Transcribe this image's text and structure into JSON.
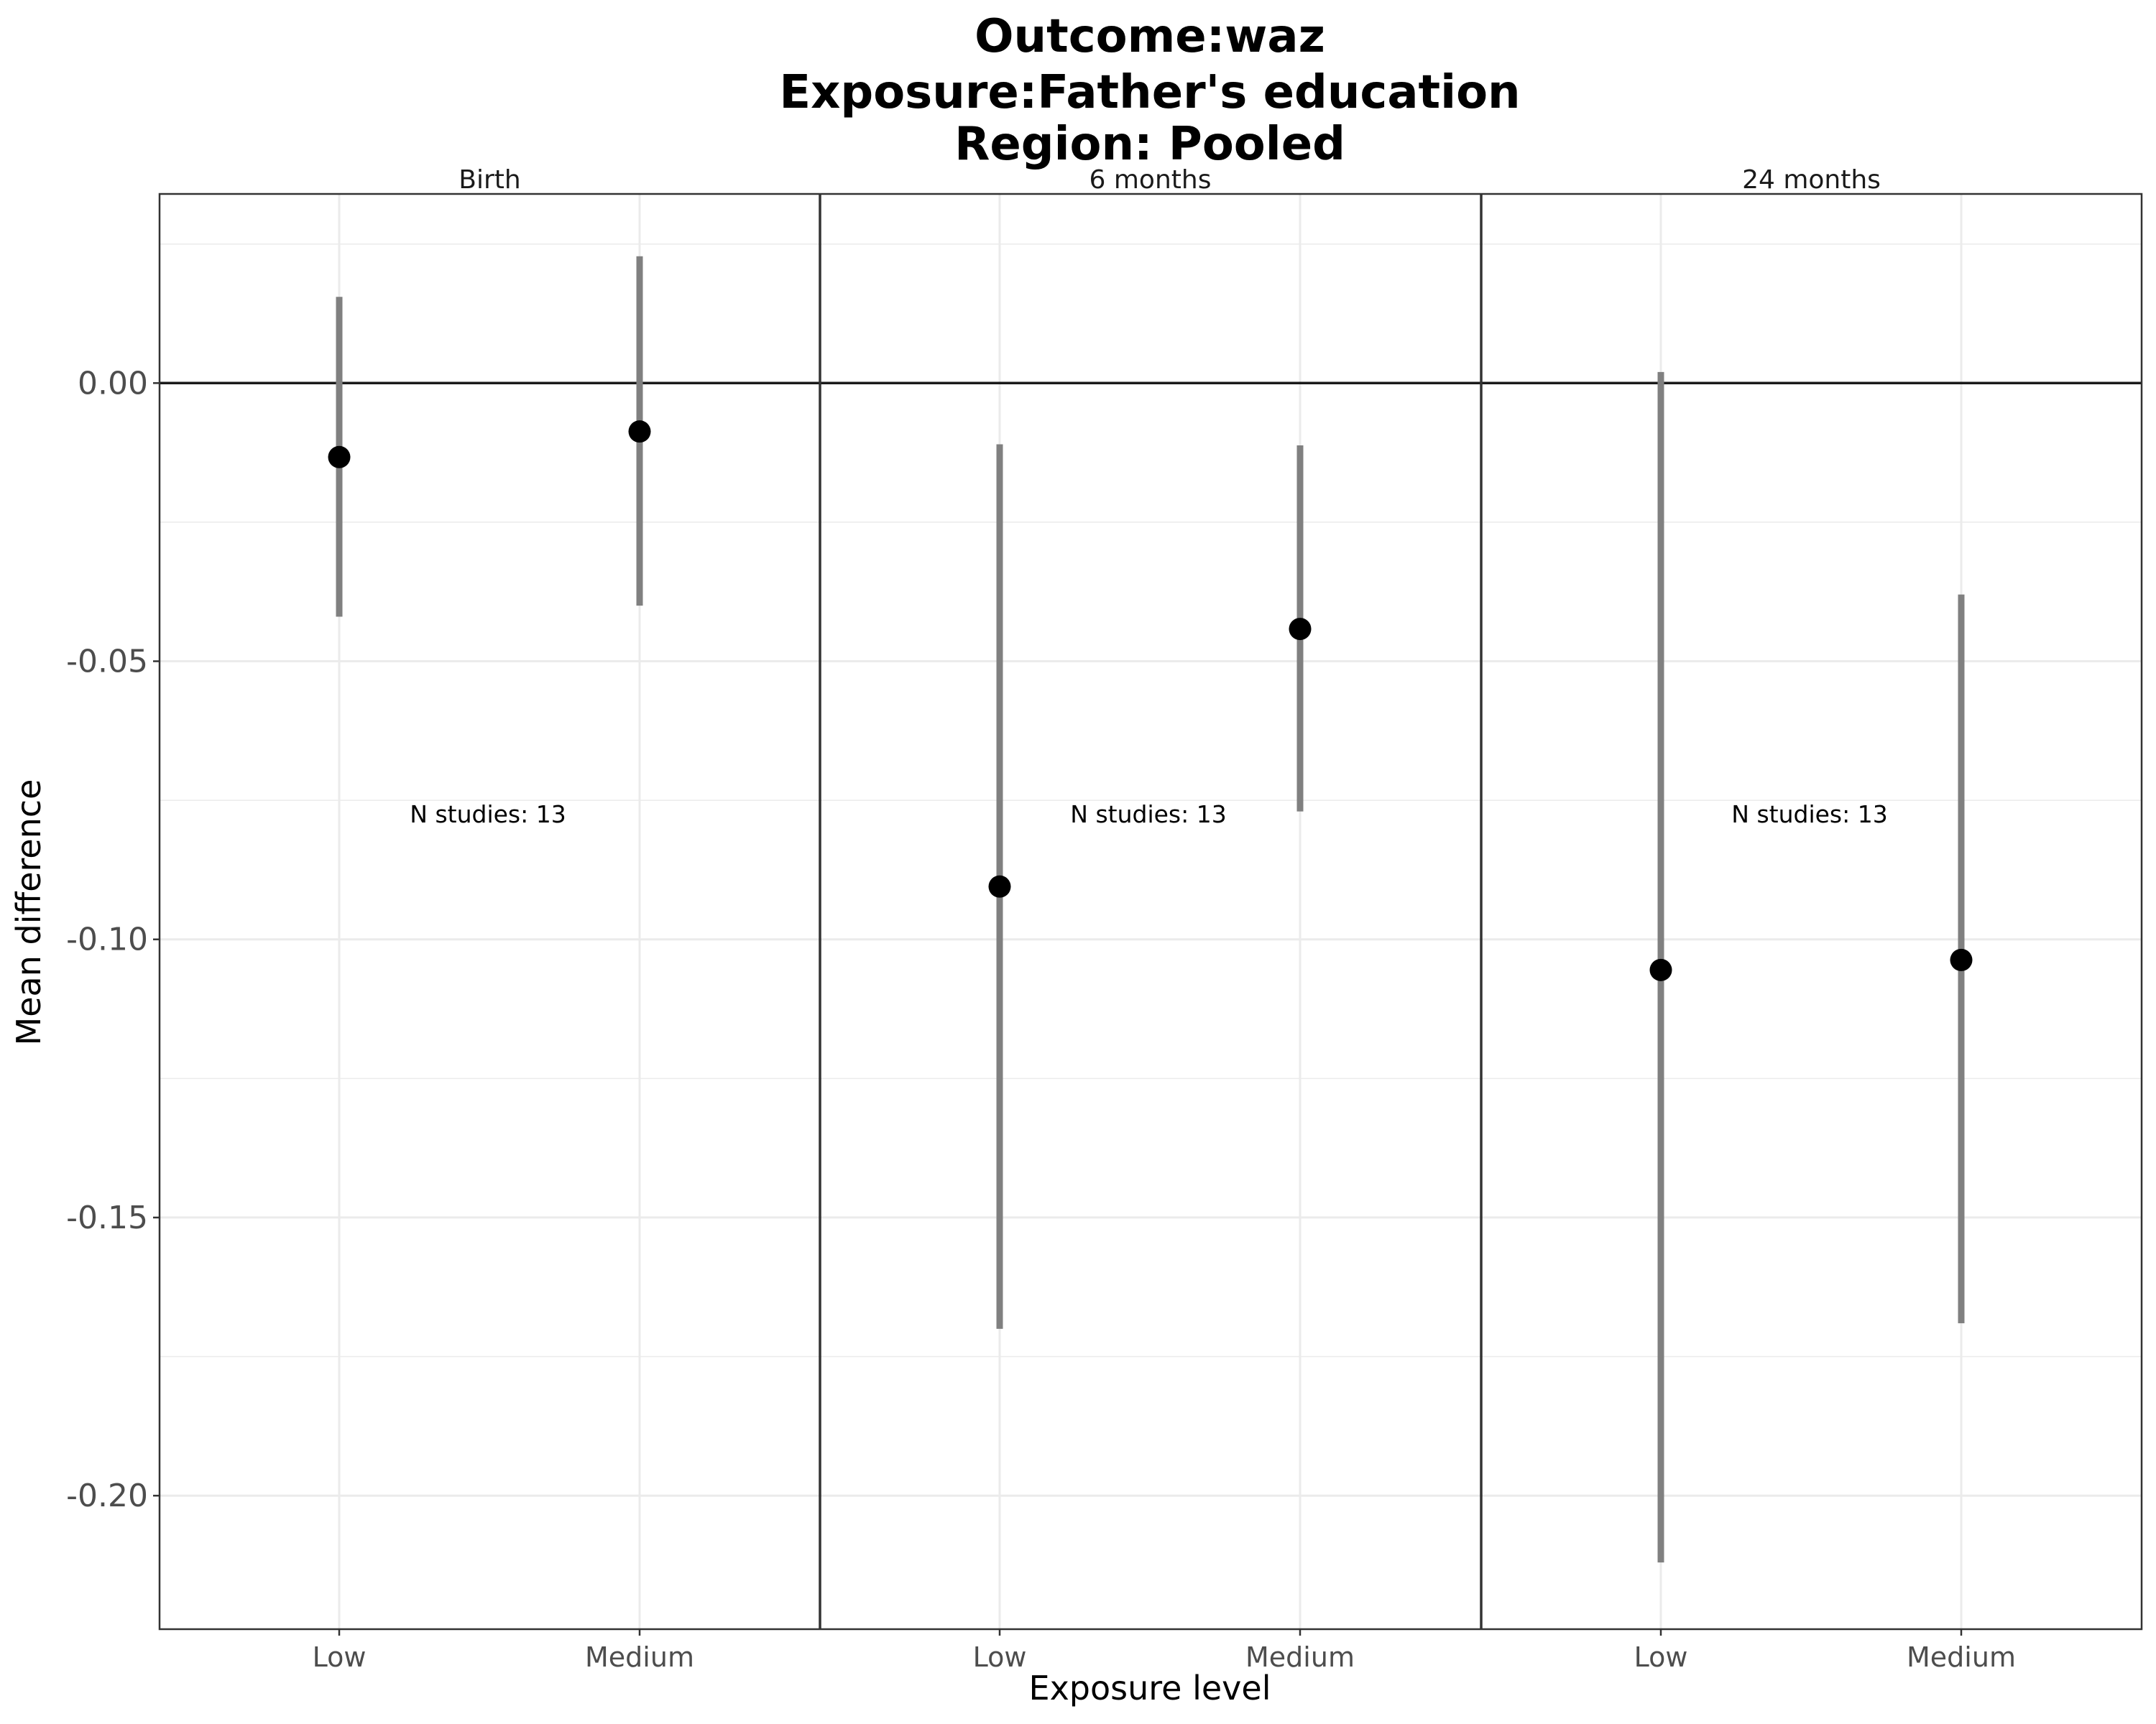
{
  "chart_data": {
    "type": "scatter",
    "title_lines": [
      "Outcome:waz",
      "Exposure:Father's education",
      "Region: Pooled"
    ],
    "xlabel": "Exposure level",
    "ylabel": "Mean difference",
    "ylim": [
      -0.224,
      0.034
    ],
    "y_ticks": [
      0.0,
      -0.05,
      -0.1,
      -0.15,
      -0.2
    ],
    "y_tick_labels": [
      "0.00",
      "-0.05",
      "-0.10",
      "-0.15",
      "-0.20"
    ],
    "reference_line": 0,
    "grid": true,
    "categories": [
      "Low",
      "Medium"
    ],
    "panels": [
      {
        "label": "Birth",
        "annotation": "N studies: 13",
        "points": [
          {
            "x": "Low",
            "estimate": -0.0133,
            "lower": -0.042,
            "upper": 0.0155
          },
          {
            "x": "Medium",
            "estimate": -0.0087,
            "lower": -0.04,
            "upper": 0.0228
          }
        ]
      },
      {
        "label": "6 months",
        "annotation": "N studies: 13",
        "points": [
          {
            "x": "Low",
            "estimate": -0.0905,
            "lower": -0.17,
            "upper": -0.011
          },
          {
            "x": "Medium",
            "estimate": -0.0442,
            "lower": -0.077,
            "upper": -0.0112
          }
        ]
      },
      {
        "label": "24 months",
        "annotation": "N studies: 13",
        "points": [
          {
            "x": "Low",
            "estimate": -0.1055,
            "lower": -0.212,
            "upper": 0.002
          },
          {
            "x": "Medium",
            "estimate": -0.1037,
            "lower": -0.169,
            "upper": -0.038
          }
        ]
      }
    ]
  },
  "colors": {
    "point": "#000000",
    "errorbar": "#808080",
    "grid": "#ebebeb",
    "panel_border": "#333333",
    "reference": "#1a1a1a"
  }
}
